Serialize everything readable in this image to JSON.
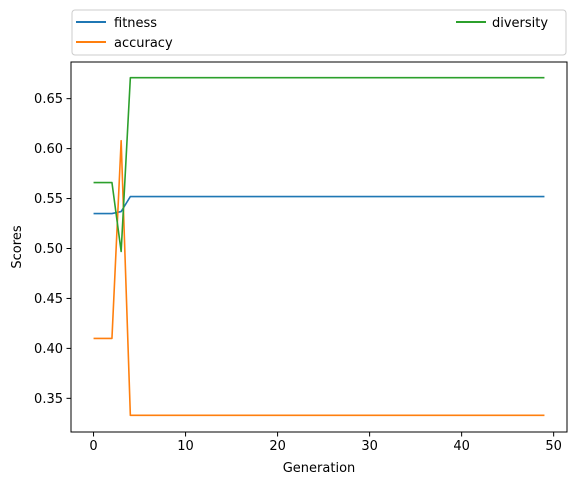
{
  "chart_data": {
    "type": "line",
    "title": "",
    "xlabel": "Generation",
    "ylabel": "Scores",
    "xlim": [
      -2.45,
      51.45
    ],
    "ylim": [
      0.3163,
      0.6867
    ],
    "xticks": [
      0,
      10,
      20,
      30,
      40,
      50
    ],
    "xtick_labels": [
      "0",
      "10",
      "20",
      "30",
      "40",
      "50"
    ],
    "yticks": [
      0.35,
      0.4,
      0.45,
      0.5,
      0.55,
      0.6,
      0.65
    ],
    "ytick_labels": [
      "0.35",
      "0.40",
      "0.45",
      "0.50",
      "0.55",
      "0.60",
      "0.65"
    ],
    "grid": false,
    "legend_placement": "above plot, two columns",
    "x_range": [
      0,
      49
    ],
    "series": [
      {
        "name": "fitness",
        "color": "#1f77b4",
        "points": [
          [
            0,
            0.535
          ],
          [
            1,
            0.535
          ],
          [
            2,
            0.535
          ],
          [
            3,
            0.537
          ],
          [
            4,
            0.552
          ],
          [
            49,
            0.552
          ]
        ]
      },
      {
        "name": "accuracy",
        "color": "#ff7f0e",
        "points": [
          [
            0,
            0.41
          ],
          [
            1,
            0.41
          ],
          [
            2,
            0.41
          ],
          [
            3,
            0.608
          ],
          [
            4,
            0.333
          ],
          [
            49,
            0.333
          ]
        ]
      },
      {
        "name": "diversity",
        "color": "#2ca02c",
        "points": [
          [
            0,
            0.566
          ],
          [
            1,
            0.566
          ],
          [
            2,
            0.566
          ],
          [
            3,
            0.497
          ],
          [
            4,
            0.671
          ],
          [
            49,
            0.671
          ]
        ]
      }
    ]
  }
}
